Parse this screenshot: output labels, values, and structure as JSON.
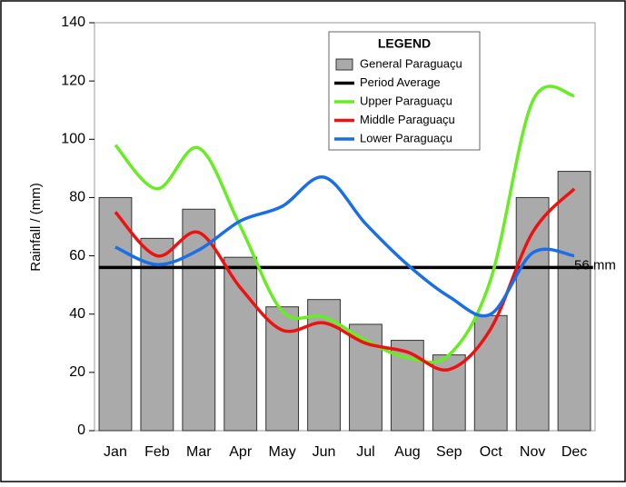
{
  "chart_data": {
    "type": "bar-line",
    "y_label": "Rainfall / (mm)",
    "legend_title": "LEGEND",
    "categories": [
      "Jan",
      "Feb",
      "Mar",
      "Apr",
      "May",
      "Jun",
      "Jul",
      "Aug",
      "Sep",
      "Oct",
      "Nov",
      "Dec"
    ],
    "series": [
      {
        "name": "General Paraguaçu",
        "kind": "bar",
        "color": "#aaaaaa",
        "values": [
          80,
          66,
          76,
          59.5,
          42.5,
          45,
          36.5,
          31,
          26,
          39.5,
          80,
          89
        ]
      },
      {
        "name": "Period Average",
        "kind": "hline",
        "color": "#000000",
        "value": 56,
        "value_label": "56 mm"
      },
      {
        "name": "Upper Paraguaçu",
        "kind": "line",
        "color": "#66ee22",
        "values": [
          98,
          83,
          97,
          70,
          41,
          39,
          31,
          25,
          26,
          52,
          113,
          115
        ]
      },
      {
        "name": "Middle Paraguaçu",
        "kind": "line",
        "color": "#ee1111",
        "values": [
          75,
          60,
          68,
          49,
          34.5,
          37,
          30,
          27,
          21,
          35,
          68,
          83
        ]
      },
      {
        "name": "Lower Paraguaçu",
        "kind": "line",
        "color": "#1a6fe6",
        "values": [
          63,
          57,
          62,
          72,
          77,
          87,
          71,
          57,
          46,
          40,
          61,
          60
        ]
      }
    ],
    "ylim": [
      0,
      140
    ],
    "yticks": [
      0,
      20,
      40,
      60,
      80,
      100,
      120,
      140
    ]
  }
}
